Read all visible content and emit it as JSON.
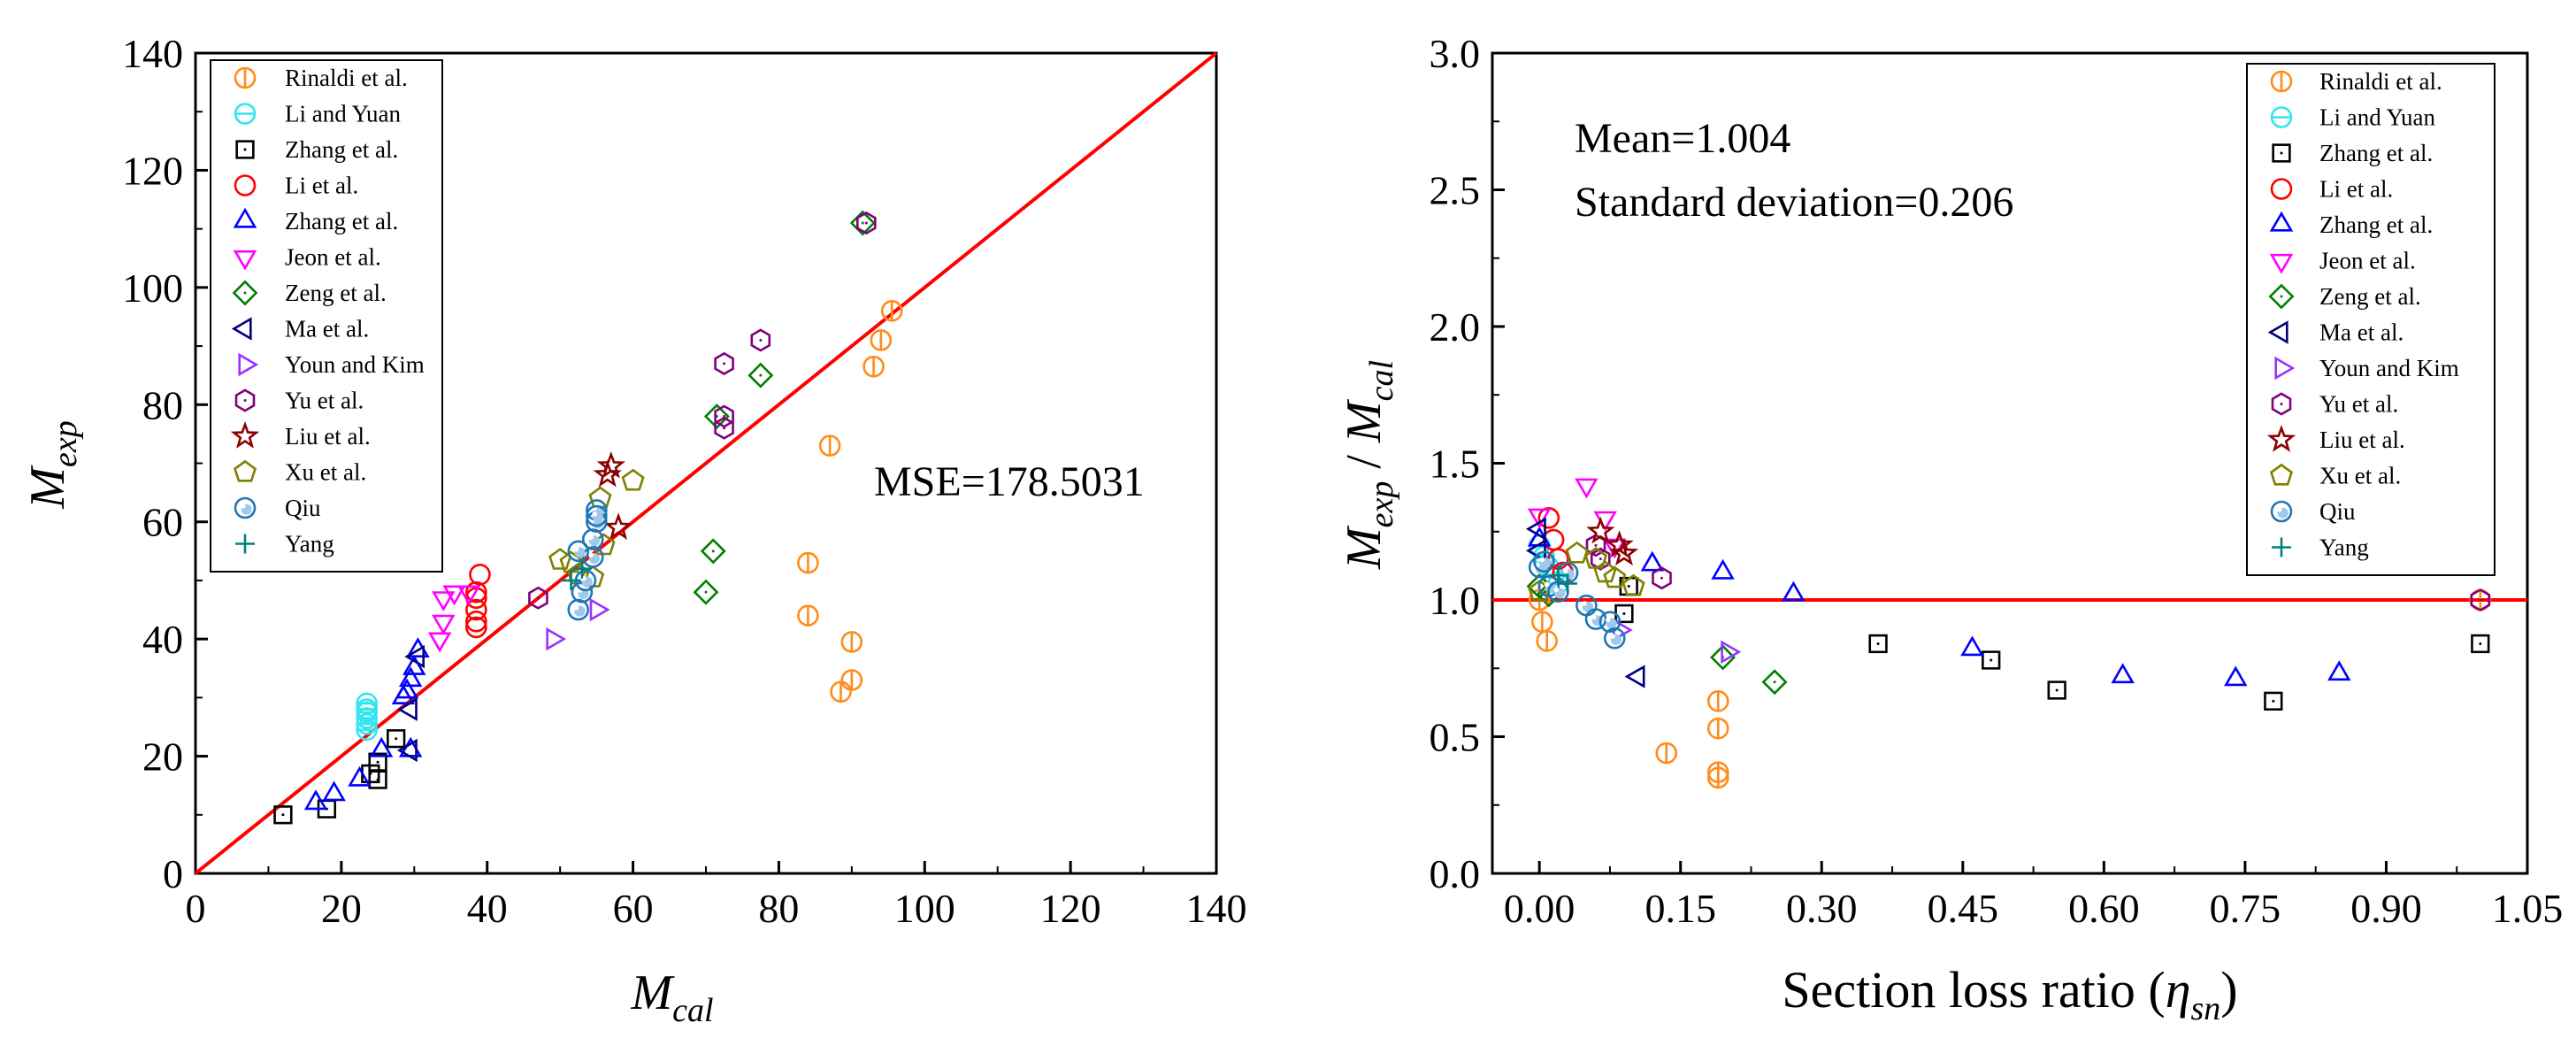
{
  "series_styles": [
    {
      "name": "Rinaldi et al.",
      "marker": "circle-vbar",
      "color": "#ff8c1a"
    },
    {
      "name": "Li and Yuan",
      "marker": "circle-hbar",
      "color": "#33e5ef"
    },
    {
      "name": "Zhang et al.",
      "marker": "square",
      "color": "#000000"
    },
    {
      "name": "Li et al.",
      "marker": "circle",
      "color": "#ff0000"
    },
    {
      "name": "Zhang et al.",
      "marker": "triangle-up",
      "color": "#0000ff"
    },
    {
      "name": "Jeon et al.",
      "marker": "triangle-down",
      "color": "#ff00ff"
    },
    {
      "name": "Zeng et al.",
      "marker": "diamond",
      "color": "#008000"
    },
    {
      "name": "Ma et al.",
      "marker": "triangle-left",
      "color": "#000080"
    },
    {
      "name": "Youn and Kim",
      "marker": "triangle-right",
      "color": "#9933ff"
    },
    {
      "name": "Yu et al.",
      "marker": "hexagon",
      "color": "#800080"
    },
    {
      "name": "Liu et al.",
      "marker": "star",
      "color": "#8b0000"
    },
    {
      "name": "Xu et al.",
      "marker": "pentagon",
      "color": "#808000"
    },
    {
      "name": "Qiu",
      "marker": "sphere",
      "color": "#1f77b4"
    },
    {
      "name": "Yang",
      "marker": "plus",
      "color": "#008080"
    }
  ],
  "chart_data": [
    {
      "type": "scatter",
      "title": "",
      "xlabel": "M_cal",
      "ylabel": "M_exp",
      "xlim": [
        0,
        140
      ],
      "ylim": [
        0,
        140
      ],
      "xticks": [
        "0",
        "20",
        "40",
        "60",
        "80",
        "100",
        "120",
        "140"
      ],
      "yticks": [
        "0",
        "20",
        "40",
        "60",
        "80",
        "100",
        "120",
        "140"
      ],
      "annotation": "MSE=178.5031",
      "reference_line": {
        "x": [
          0,
          140
        ],
        "y": [
          0,
          140
        ],
        "color": "#ff0000"
      },
      "legend_position": "top-left",
      "series": [
        {
          "name": "Rinaldi et al.",
          "x": [
            95.5,
            94,
            93,
            87,
            84,
            84,
            88.5,
            90,
            90
          ],
          "y": [
            96,
            91,
            86.5,
            73,
            53,
            44,
            31,
            33,
            39.5
          ]
        },
        {
          "name": "Li and Yuan",
          "x": [
            23.5,
            23.5,
            23.5,
            23.5,
            23.5,
            23.5
          ],
          "y": [
            24.5,
            25.5,
            26.5,
            27.5,
            28,
            29
          ]
        },
        {
          "name": "Zhang et al.",
          "x": [
            12,
            18,
            25,
            25,
            27.5,
            24
          ],
          "y": [
            10,
            11,
            16,
            19,
            23,
            17
          ]
        },
        {
          "name": "Li et al.",
          "x": [
            38.5,
            38.5,
            38.5,
            38.5,
            38.5,
            39
          ],
          "y": [
            42,
            43,
            45,
            47,
            48,
            51
          ]
        },
        {
          "name": "Zhang et al.",
          "x": [
            16.5,
            19,
            22.5,
            25.5,
            29.5,
            28.5,
            29.5,
            30,
            30.5,
            29
          ],
          "y": [
            12,
            13.5,
            16,
            21,
            21,
            30,
            33,
            35,
            38,
            31
          ]
        },
        {
          "name": "Jeon et al.",
          "x": [
            33.5,
            34,
            34,
            35.5,
            37.5
          ],
          "y": [
            40,
            43,
            47,
            48,
            48
          ]
        },
        {
          "name": "Zeng et al.",
          "x": [
            70,
            71,
            71.5,
            77.5,
            91.5
          ],
          "y": [
            48,
            55,
            78,
            85,
            111
          ]
        },
        {
          "name": "Ma et al.",
          "x": [
            29.5,
            30.5,
            29.5
          ],
          "y": [
            21,
            37,
            28
          ]
        },
        {
          "name": "Youn and Kim",
          "x": [
            49,
            55
          ],
          "y": [
            40,
            45
          ]
        },
        {
          "name": "Yu et al.",
          "x": [
            47,
            72.5,
            72.5,
            72.5,
            77.5,
            92
          ],
          "y": [
            47,
            76,
            78,
            87,
            91,
            111
          ]
        },
        {
          "name": "Liu et al.",
          "x": [
            56.5,
            57,
            58
          ],
          "y": [
            68,
            69.5,
            59
          ]
        },
        {
          "name": "Xu et al.",
          "x": [
            50,
            55.5,
            60,
            51.5,
            52.5,
            54.5,
            56
          ],
          "y": [
            53.5,
            64,
            67,
            53,
            51,
            50.5,
            56
          ]
        },
        {
          "name": "Qiu",
          "x": [
            52.5,
            53,
            53.5,
            54.5,
            54.5,
            55,
            55,
            55,
            52.5
          ],
          "y": [
            45,
            48,
            50,
            54,
            57,
            60,
            62,
            61,
            55
          ]
        },
        {
          "name": "Yang",
          "x": [
            51.5,
            53
          ],
          "y": [
            50,
            52
          ]
        }
      ]
    },
    {
      "type": "scatter",
      "title": "",
      "xlabel": "Section loss ratio (η_sn)",
      "ylabel": "M_exp / M_cal",
      "xlim": [
        -0.05,
        1.05
      ],
      "ylim": [
        0,
        3
      ],
      "xticks": [
        "0.00",
        "0.15",
        "0.30",
        "0.45",
        "0.60",
        "0.75",
        "0.90",
        "1.05"
      ],
      "yticks": [
        "0.0",
        "0.5",
        "1.0",
        "1.5",
        "2.0",
        "2.5",
        "3.0"
      ],
      "annotations": [
        "Mean=1.004",
        "Standard deviation=0.206"
      ],
      "reference_line": {
        "x": [
          -0.05,
          1.05
        ],
        "y": [
          1,
          1
        ],
        "color": "#ff0000"
      },
      "legend_position": "top-right",
      "series": [
        {
          "name": "Rinaldi et al.",
          "x": [
            0,
            0.003,
            0.008,
            0.135,
            0.19,
            0.19,
            0.19,
            0.19,
            1.0
          ],
          "y": [
            1.0,
            0.92,
            0.85,
            0.44,
            0.63,
            0.53,
            0.37,
            0.35,
            1.0
          ]
        },
        {
          "name": "Li and Yuan",
          "x": [
            0.0,
            0.005,
            0.01,
            0.015,
            0.02,
            0.025
          ],
          "y": [
            1.2,
            1.16,
            1.12,
            1.09,
            1.06,
            1.1
          ]
        },
        {
          "name": "Zhang et al.",
          "x": [
            0.09,
            0.095,
            0.36,
            0.48,
            0.55,
            0.78,
            1.0
          ],
          "y": [
            0.95,
            1.05,
            0.84,
            0.78,
            0.67,
            0.63,
            0.84
          ]
        },
        {
          "name": "Li et al.",
          "x": [
            0.01,
            0.015,
            0.02,
            0.025
          ],
          "y": [
            1.3,
            1.22,
            1.15,
            1.1
          ]
        },
        {
          "name": "Zhang et al.",
          "x": [
            0.12,
            0.195,
            0.27,
            0.46,
            0.62,
            0.74,
            0.85,
            0.0
          ],
          "y": [
            1.13,
            1.1,
            1.02,
            0.82,
            0.72,
            0.71,
            0.73,
            1.22
          ]
        },
        {
          "name": "Jeon et al.",
          "x": [
            0.0,
            0.05,
            0.07,
            0.08
          ],
          "y": [
            1.31,
            1.42,
            1.3,
            1.2
          ]
        },
        {
          "name": "Zeng et al.",
          "x": [
            0.0,
            0.01,
            0.195,
            0.25
          ],
          "y": [
            1.05,
            1.02,
            0.79,
            0.7
          ]
        },
        {
          "name": "Ma et al.",
          "x": [
            0.0,
            0.105,
            0.0
          ],
          "y": [
            1.26,
            0.72,
            1.18
          ]
        },
        {
          "name": "Youn and Kim",
          "x": [
            0.085,
            0.2
          ],
          "y": [
            0.89,
            0.81
          ]
        },
        {
          "name": "Yu et al.",
          "x": [
            0.06,
            0.065,
            0.13,
            1.0
          ],
          "y": [
            1.2,
            1.15,
            1.08,
            1.0
          ]
        },
        {
          "name": "Liu et al.",
          "x": [
            0.065,
            0.085,
            0.09
          ],
          "y": [
            1.25,
            1.2,
            1.17
          ]
        },
        {
          "name": "Xu et al.",
          "x": [
            0.0,
            0.04,
            0.06,
            0.07,
            0.08,
            0.1
          ],
          "y": [
            1.03,
            1.17,
            1.15,
            1.1,
            1.08,
            1.05
          ]
        },
        {
          "name": "Qiu",
          "x": [
            0.0,
            0.005,
            0.01,
            0.02,
            0.03,
            0.05,
            0.06,
            0.075,
            0.08
          ],
          "y": [
            1.12,
            1.14,
            1.05,
            1.03,
            1.1,
            0.98,
            0.93,
            0.92,
            0.86
          ]
        },
        {
          "name": "Yang",
          "x": [
            0.02,
            0.03
          ],
          "y": [
            1.09,
            1.06
          ]
        }
      ]
    }
  ]
}
